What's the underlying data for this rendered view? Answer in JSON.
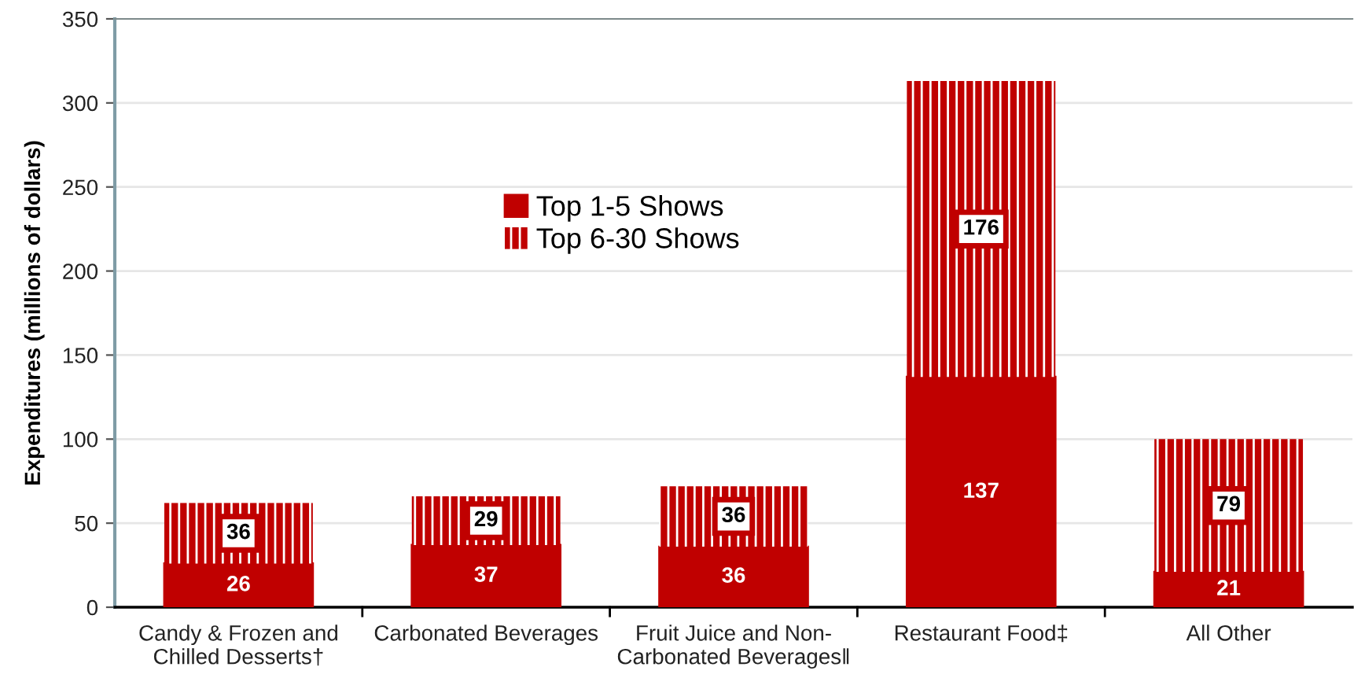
{
  "chart_data": {
    "type": "bar",
    "stacked": true,
    "ylabel": "Expenditures (millions of dollars)",
    "categories": [
      "Candy & Frozen and\nChilled Desserts†",
      "Carbonated Beverages",
      "Fruit Juice and Non-\nCarbonated Beverages‖",
      "Restaurant Food‡",
      "All Other"
    ],
    "series": [
      {
        "name": "Top 1-5 Shows",
        "color": "#c00000",
        "values": [
          26,
          37,
          36,
          137,
          21
        ]
      },
      {
        "name": "Top 6-30 Shows",
        "color": "#c00000",
        "values": [
          36,
          29,
          36,
          176,
          79
        ]
      }
    ],
    "ylim": [
      0,
      350
    ],
    "yticks": [
      0,
      50,
      100,
      150,
      200,
      250,
      300,
      350
    ],
    "grid": "y",
    "legend": "top center",
    "data_labels": true
  }
}
